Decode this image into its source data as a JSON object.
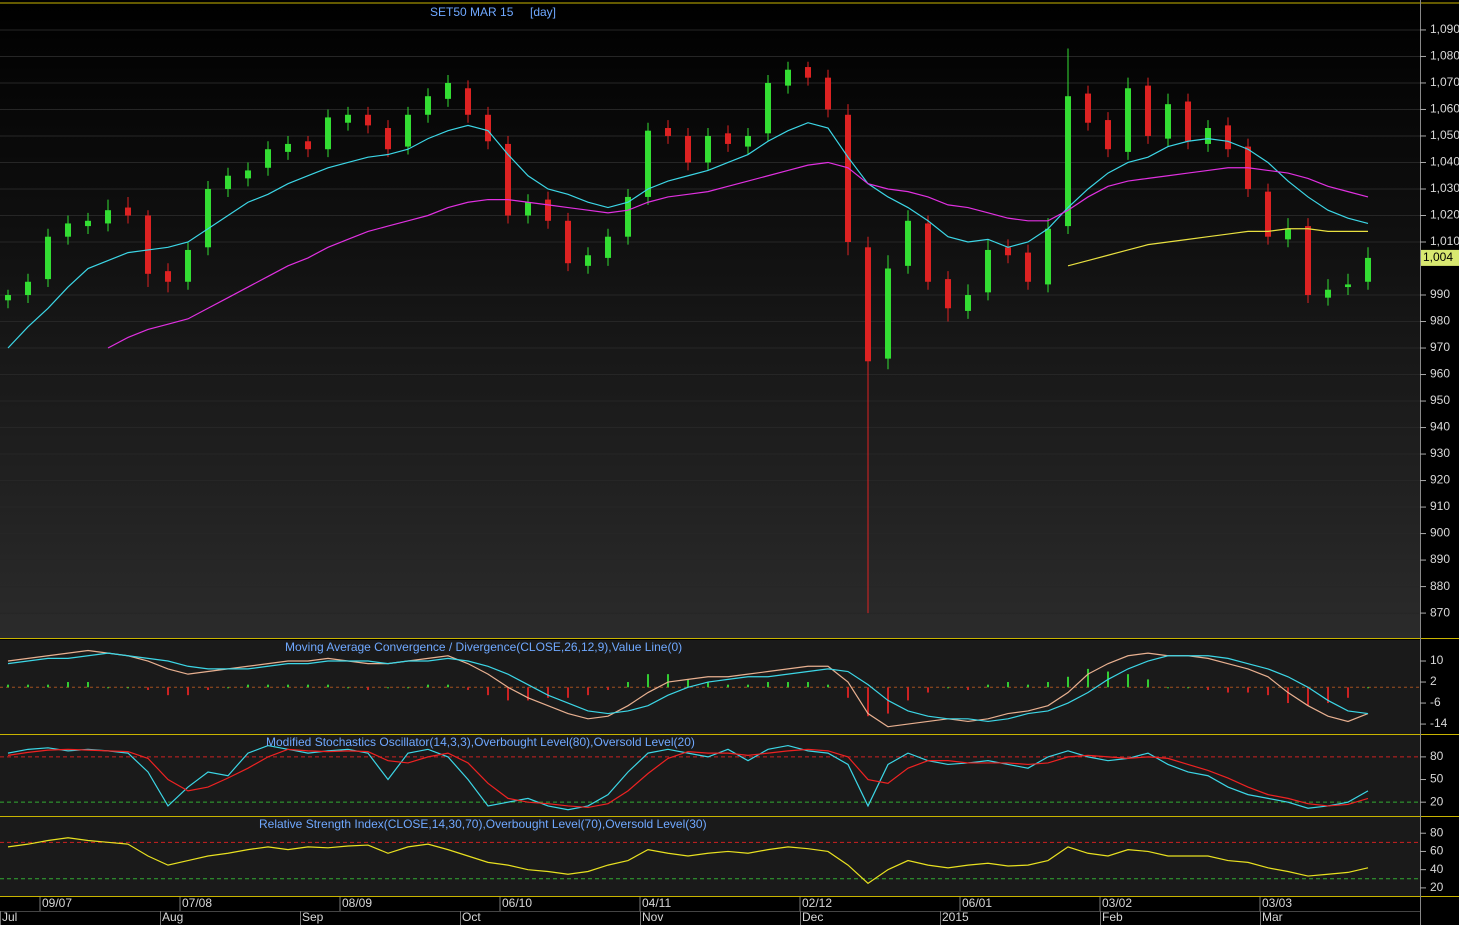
{
  "chart_data": [
    {
      "type": "candlestick",
      "title": "SET50 MAR 15",
      "subtitle": "[day]",
      "categories": [
        null,
        null,
        "09/07",
        null,
        null,
        null,
        null,
        null,
        null,
        "07/08",
        null,
        null,
        null,
        null,
        null,
        null,
        null,
        "08/09",
        null,
        null,
        null,
        null,
        null,
        null,
        null,
        "06/10",
        null,
        null,
        null,
        null,
        null,
        null,
        "04/11",
        null,
        null,
        null,
        null,
        null,
        null,
        null,
        "02/12",
        null,
        null,
        null,
        null,
        null,
        null,
        null,
        "06/01",
        null,
        null,
        null,
        null,
        null,
        null,
        "03/02",
        null,
        null,
        null,
        null,
        null,
        null,
        null,
        "03/03",
        null,
        null,
        null,
        null,
        null
      ],
      "months": [
        "Jul",
        null,
        null,
        null,
        null,
        null,
        null,
        null,
        "Aug",
        null,
        null,
        null,
        null,
        null,
        null,
        "Sep",
        null,
        null,
        null,
        null,
        null,
        null,
        null,
        "Oct",
        null,
        null,
        null,
        null,
        null,
        null,
        null,
        null,
        "Nov",
        null,
        null,
        null,
        null,
        null,
        null,
        null,
        "Dec",
        null,
        null,
        null,
        null,
        null,
        null,
        "2015",
        null,
        null,
        null,
        null,
        null,
        null,
        null,
        "Feb",
        null,
        null,
        null,
        null,
        null,
        null,
        null,
        "Mar",
        null,
        null,
        null,
        null,
        null
      ],
      "open": [
        988,
        990,
        996,
        1012,
        1016,
        1017,
        1023,
        1020,
        999,
        995,
        1008,
        1030,
        1034,
        1038,
        1044,
        1048,
        1045,
        1055,
        1058,
        1053,
        1046,
        1058,
        1064,
        1068,
        1058,
        1047,
        1020,
        1026,
        1018,
        1001,
        1004,
        1012,
        1027,
        1053,
        1050,
        1040,
        1051,
        1046,
        1051,
        1069,
        1076,
        1072,
        1058,
        1008,
        966,
        1001,
        1017,
        996,
        984,
        991,
        1008,
        1006,
        994,
        1016,
        1066,
        1056,
        1044,
        1069,
        1049,
        1063,
        1047,
        1054,
        1046,
        1029,
        1011,
        1016,
        989,
        993,
        995
      ],
      "high": [
        992,
        998,
        1015,
        1020,
        1021,
        1026,
        1027,
        1022,
        1002,
        1010,
        1033,
        1038,
        1040,
        1048,
        1050,
        1050,
        1060,
        1061,
        1061,
        1056,
        1061,
        1068,
        1073,
        1071,
        1061,
        1050,
        1028,
        1029,
        1021,
        1008,
        1015,
        1030,
        1055,
        1056,
        1053,
        1053,
        1054,
        1053,
        1073,
        1078,
        1078,
        1075,
        1062,
        1012,
        1005,
        1022,
        1020,
        999,
        994,
        1011,
        1011,
        1009,
        1019,
        1083,
        1069,
        1059,
        1072,
        1072,
        1066,
        1066,
        1056,
        1057,
        1049,
        1032,
        1019,
        1019,
        996,
        998,
        1008
      ],
      "low": [
        985,
        987,
        993,
        1009,
        1013,
        1014,
        1017,
        993,
        991,
        992,
        1005,
        1027,
        1031,
        1035,
        1041,
        1042,
        1042,
        1052,
        1051,
        1042,
        1043,
        1055,
        1061,
        1055,
        1045,
        1017,
        1017,
        1015,
        999,
        998,
        1001,
        1009,
        1024,
        1047,
        1037,
        1037,
        1044,
        1043,
        1048,
        1066,
        1069,
        1057,
        1005,
        870,
        962,
        998,
        992,
        980,
        981,
        988,
        1002,
        992,
        991,
        1013,
        1052,
        1042,
        1041,
        1047,
        1046,
        1045,
        1044,
        1042,
        1027,
        1009,
        1008,
        987,
        986,
        990,
        992
      ],
      "close": [
        990,
        995,
        1012,
        1017,
        1018,
        1022,
        1020,
        998,
        995,
        1007,
        1030,
        1035,
        1037,
        1045,
        1047,
        1045,
        1057,
        1058,
        1054,
        1045,
        1058,
        1065,
        1070,
        1058,
        1048,
        1020,
        1025,
        1018,
        1002,
        1005,
        1012,
        1027,
        1052,
        1050,
        1040,
        1050,
        1047,
        1050,
        1070,
        1075,
        1072,
        1060,
        1010,
        965,
        1000,
        1018,
        995,
        985,
        990,
        1007,
        1005,
        995,
        1015,
        1065,
        1055,
        1045,
        1068,
        1050,
        1062,
        1048,
        1053,
        1045,
        1030,
        1012,
        1015,
        990,
        992,
        994,
        1004
      ],
      "up_color": "#33dd33",
      "down_color": "#dd2222",
      "series": [
        {
          "color": "#3cd6e6",
          "values": [
            970,
            978,
            985,
            993,
            1000,
            1003,
            1006,
            1007,
            1008,
            1010,
            1015,
            1020,
            1025,
            1028,
            1032,
            1035,
            1038,
            1040,
            1042,
            1043,
            1045,
            1049,
            1052,
            1054,
            1052,
            1043,
            1035,
            1030,
            1028,
            1025,
            1023,
            1025,
            1030,
            1033,
            1035,
            1037,
            1040,
            1043,
            1048,
            1052,
            1055,
            1053,
            1042,
            1032,
            1027,
            1023,
            1018,
            1012,
            1010,
            1011,
            1008,
            1010,
            1015,
            1023,
            1030,
            1036,
            1040,
            1042,
            1046,
            1048,
            1049,
            1048,
            1045,
            1040,
            1033,
            1027,
            1022,
            1019,
            1017
          ]
        },
        {
          "color": "#e030e0",
          "values": [
            null,
            null,
            null,
            null,
            null,
            970,
            974,
            977,
            979,
            981,
            985,
            989,
            993,
            997,
            1001,
            1004,
            1008,
            1011,
            1014,
            1016,
            1018,
            1020,
            1023,
            1025,
            1026,
            1026,
            1025,
            1024,
            1023,
            1022,
            1021,
            1022,
            1025,
            1027,
            1028,
            1029,
            1031,
            1033,
            1035,
            1037,
            1039,
            1040,
            1038,
            1032,
            1030,
            1029,
            1027,
            1024,
            1023,
            1021,
            1019,
            1018,
            1018,
            1022,
            1027,
            1031,
            1033,
            1034,
            1035,
            1036,
            1037,
            1038,
            1038,
            1037,
            1036,
            1034,
            1031,
            1029,
            1027
          ]
        },
        {
          "color": "#e8e040",
          "values": [
            null,
            null,
            null,
            null,
            null,
            null,
            null,
            null,
            null,
            null,
            null,
            null,
            null,
            null,
            null,
            null,
            null,
            null,
            null,
            null,
            null,
            null,
            null,
            null,
            null,
            null,
            null,
            null,
            null,
            null,
            null,
            null,
            null,
            null,
            null,
            null,
            null,
            null,
            null,
            null,
            null,
            null,
            null,
            null,
            null,
            null,
            null,
            null,
            null,
            null,
            null,
            null,
            null,
            1001,
            1003,
            1005,
            1007,
            1009,
            1010,
            1011,
            1012,
            1013,
            1014,
            1014,
            1015,
            1015,
            1014,
            1014,
            1014
          ]
        }
      ],
      "ylim": [
        860.6,
        1101.3
      ],
      "yticks": [
        870,
        880,
        890,
        900,
        910,
        920,
        930,
        940,
        950,
        960,
        970,
        980,
        990,
        {
          "value": 1010,
          "label": "1,010"
        },
        {
          "value": 1020,
          "label": "1,020"
        },
        {
          "value": 1030,
          "label": "1,030"
        },
        {
          "value": 1040,
          "label": "1,040"
        },
        {
          "value": 1050,
          "label": "1,050"
        },
        {
          "value": 1060,
          "label": "1,060"
        },
        {
          "value": 1070,
          "label": "1,070"
        },
        {
          "value": 1080,
          "label": "1,080"
        },
        {
          "value": 1090,
          "label": "1,090"
        }
      ],
      "last_price": {
        "value": 1004,
        "label": "1,004"
      },
      "grid": true
    },
    {
      "type": "macd",
      "title": "Moving Average Convergence / Divergence(CLOSE,26,12,9),Value Line(0)",
      "series": [
        {
          "color": "#e8b090",
          "values": [
            10,
            11,
            12,
            13,
            14,
            13,
            12,
            10,
            7,
            5,
            6,
            7,
            8,
            9,
            10,
            10,
            11,
            10,
            9,
            9,
            10,
            11,
            12,
            9,
            5,
            0,
            -4,
            -7,
            -10,
            -12,
            -11,
            -7,
            -2,
            2,
            3,
            4,
            4,
            5,
            6,
            7,
            8,
            8,
            2,
            -10,
            -15,
            -14,
            -13,
            -12,
            -13,
            -12,
            -10,
            -9,
            -7,
            -2,
            5,
            9,
            12,
            13,
            12,
            12,
            11,
            9,
            7,
            4,
            -2,
            -7,
            -11,
            -13,
            -10
          ]
        },
        {
          "color": "#3cd6e6",
          "values": [
            9,
            10,
            11,
            11,
            12,
            13,
            12,
            11,
            10,
            8,
            7,
            7,
            7,
            8,
            9,
            9,
            10,
            10,
            10,
            9,
            10,
            10,
            11,
            10,
            8,
            5,
            1,
            -3,
            -6,
            -9,
            -10,
            -9,
            -7,
            -3,
            0,
            2,
            3,
            4,
            4,
            5,
            6,
            7,
            6,
            1,
            -5,
            -9,
            -11,
            -12,
            -12,
            -13,
            -12,
            -10,
            -9,
            -6,
            -2,
            3,
            7,
            10,
            12,
            12,
            12,
            11,
            9,
            7,
            4,
            0,
            -5,
            -9,
            -10
          ]
        }
      ],
      "histogram": {
        "up_color": "#33cc33",
        "down_color": "#cc2222",
        "values": [
          1,
          1,
          1,
          2,
          2,
          0,
          0,
          -1,
          -3,
          -3,
          -1,
          0,
          1,
          1,
          1,
          1,
          1,
          0,
          -1,
          0,
          0,
          1,
          1,
          -1,
          -3,
          -5,
          -5,
          -4,
          -4,
          -3,
          -1,
          2,
          5,
          5,
          3,
          2,
          1,
          1,
          2,
          2,
          2,
          1,
          -4,
          -11,
          -10,
          -5,
          -2,
          0,
          -1,
          1,
          2,
          1,
          2,
          4,
          7,
          6,
          5,
          3,
          0,
          0,
          -1,
          -2,
          -2,
          -3,
          -6,
          -7,
          -6,
          -4,
          0
        ]
      },
      "value_line": 0,
      "ylim": [
        -17.4,
        18
      ],
      "yticks": [
        10,
        2,
        -6,
        -14
      ]
    },
    {
      "type": "line",
      "title": "Modified Stochastics Oscillator(14,3,3),Overbought Level(80),Oversold Level(20)",
      "series": [
        {
          "color": "#3cd6e6",
          "values": [
            85,
            90,
            92,
            88,
            90,
            88,
            85,
            60,
            15,
            40,
            60,
            55,
            85,
            95,
            90,
            85,
            88,
            90,
            85,
            50,
            85,
            90,
            80,
            50,
            15,
            20,
            25,
            15,
            10,
            15,
            30,
            60,
            85,
            90,
            85,
            80,
            90,
            75,
            90,
            95,
            88,
            85,
            70,
            15,
            70,
            85,
            75,
            70,
            72,
            75,
            70,
            65,
            80,
            88,
            80,
            75,
            78,
            85,
            70,
            60,
            55,
            40,
            30,
            25,
            20,
            12,
            15,
            20,
            35
          ]
        },
        {
          "color": "#ee2222",
          "values": [
            82,
            86,
            89,
            90,
            89,
            88,
            87,
            78,
            50,
            35,
            40,
            52,
            65,
            80,
            90,
            88,
            87,
            88,
            87,
            75,
            72,
            80,
            85,
            72,
            45,
            25,
            20,
            18,
            15,
            13,
            18,
            35,
            58,
            78,
            87,
            85,
            85,
            82,
            85,
            88,
            90,
            88,
            80,
            50,
            45,
            65,
            75,
            75,
            72,
            72,
            72,
            70,
            72,
            80,
            82,
            80,
            78,
            80,
            78,
            70,
            62,
            52,
            40,
            30,
            25,
            18,
            15,
            17,
            25
          ]
        }
      ],
      "levels": [
        {
          "value": 80,
          "color": "#cc2222"
        },
        {
          "value": 20,
          "color": "#33aa33"
        }
      ],
      "ylim": [
        3,
        109
      ],
      "yticks": [
        80,
        50,
        20
      ]
    },
    {
      "type": "line",
      "title": "Relative Strength Index(CLOSE,14,30,70),Overbought Level(70),Oversold Level(30)",
      "series": [
        {
          "color": "#e8e020",
          "values": [
            65,
            68,
            72,
            75,
            72,
            70,
            68,
            55,
            45,
            50,
            55,
            58,
            62,
            65,
            62,
            65,
            64,
            66,
            67,
            58,
            65,
            68,
            62,
            55,
            48,
            45,
            40,
            38,
            35,
            38,
            45,
            50,
            62,
            58,
            55,
            58,
            60,
            58,
            62,
            65,
            63,
            60,
            45,
            25,
            40,
            50,
            45,
            42,
            45,
            47,
            44,
            45,
            50,
            65,
            58,
            55,
            62,
            60,
            55,
            55,
            55,
            50,
            48,
            42,
            38,
            33,
            35,
            37,
            42
          ]
        }
      ],
      "levels": [
        {
          "value": 70,
          "color": "#cc2222"
        },
        {
          "value": 30,
          "color": "#33aa33"
        }
      ],
      "ylim": [
        12.2,
        97.8
      ],
      "yticks": [
        80,
        60,
        40,
        20
      ]
    }
  ]
}
